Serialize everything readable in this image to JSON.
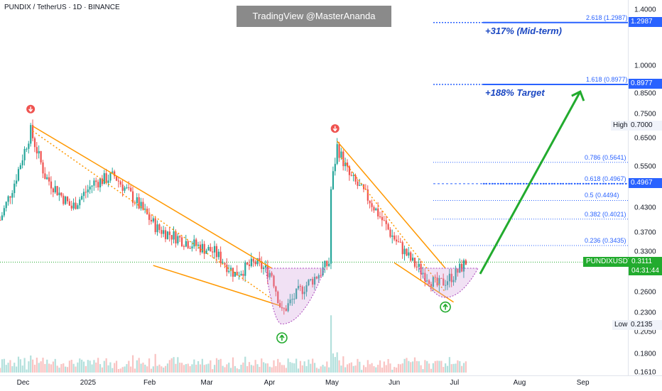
{
  "header": {
    "symbol_title": "PUNDIX / TetherUS · 1D · BINANCE",
    "watermark": "TradingView @MasterAnanda"
  },
  "price_scale": {
    "ticks": [
      "1.4000",
      "1.2987",
      "1.0000",
      "0.8977",
      "0.8500",
      "0.7500",
      "0.7000",
      "0.6500",
      "0.5500",
      "0.4967",
      "0.4300",
      "0.3700",
      "0.3300",
      "0.3111",
      "0.2600",
      "0.2300",
      "0.2135",
      "0.2050",
      "0.1800",
      "0.1610"
    ],
    "high_label": "High",
    "high_value": "0.7000",
    "low_label": "Low",
    "low_value": "0.2135",
    "symbol_badge": "PUNDIXUSDT",
    "last_price": "0.3111",
    "countdown": "04:31:44",
    "accent_blue": "#2962ff",
    "accent_green": "#22ab2e"
  },
  "fib_levels": [
    {
      "label": "2.618 (1.2987)",
      "value": 1.2987
    },
    {
      "label": "1.618 (0.8977)",
      "value": 0.8977
    },
    {
      "label": "0.786 (0.5641)",
      "value": 0.5641
    },
    {
      "label": "0.618 (0.4967)",
      "value": 0.4967
    },
    {
      "label": "0.5 (0.4494)",
      "value": 0.4494
    },
    {
      "label": "0.382 (0.4021)",
      "value": 0.4021
    },
    {
      "label": "0.236 (0.3435)",
      "value": 0.3435
    }
  ],
  "annotations": {
    "target_midterm": "+317% (Mid-term)",
    "target_188": "+188% Target"
  },
  "time_axis": {
    "labels": [
      "Dec",
      "2025",
      "Feb",
      "Mar",
      "Apr",
      "May",
      "Jun",
      "Jul",
      "Aug",
      "Sep"
    ]
  },
  "chart_data": {
    "type": "candlestick",
    "scale": "log",
    "x_range": [
      "2024-11-20",
      "2025-09-15"
    ],
    "ylim": [
      0.161,
      1.4
    ],
    "colors": {
      "up": "#26a69a",
      "down": "#ef5350",
      "trendline": "#ff9800",
      "arrow": "#22ab2e"
    },
    "price_path": [
      {
        "date": "2024-11-20",
        "price": 0.4
      },
      {
        "date": "2024-11-27",
        "price": 0.5
      },
      {
        "date": "2024-12-05",
        "price": 0.68
      },
      {
        "date": "2024-12-12",
        "price": 0.52
      },
      {
        "date": "2024-12-25",
        "price": 0.43
      },
      {
        "date": "2025-01-05",
        "price": 0.5
      },
      {
        "date": "2025-01-15",
        "price": 0.52
      },
      {
        "date": "2025-01-25",
        "price": 0.45
      },
      {
        "date": "2025-02-05",
        "price": 0.38
      },
      {
        "date": "2025-02-20",
        "price": 0.35
      },
      {
        "date": "2025-03-05",
        "price": 0.33
      },
      {
        "date": "2025-03-15",
        "price": 0.29
      },
      {
        "date": "2025-03-25",
        "price": 0.31
      },
      {
        "date": "2025-04-02",
        "price": 0.29
      },
      {
        "date": "2025-04-07",
        "price": 0.23
      },
      {
        "date": "2025-04-15",
        "price": 0.26
      },
      {
        "date": "2025-04-25",
        "price": 0.29
      },
      {
        "date": "2025-04-30",
        "price": 0.31
      },
      {
        "date": "2025-05-01",
        "price": 0.48
      },
      {
        "date": "2025-05-04",
        "price": 0.62
      },
      {
        "date": "2025-05-10",
        "price": 0.52
      },
      {
        "date": "2025-05-20",
        "price": 0.45
      },
      {
        "date": "2025-05-30",
        "price": 0.37
      },
      {
        "date": "2025-06-10",
        "price": 0.31
      },
      {
        "date": "2025-06-22",
        "price": 0.27
      },
      {
        "date": "2025-07-01",
        "price": 0.29
      },
      {
        "date": "2025-07-06",
        "price": 0.3111
      }
    ]
  }
}
